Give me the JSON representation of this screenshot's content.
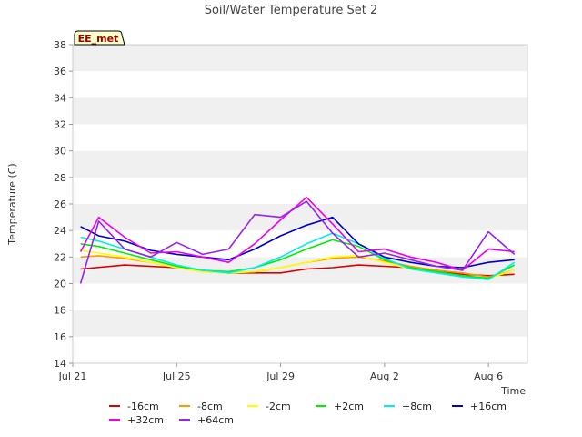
{
  "chart_data": {
    "type": "line",
    "title": "Soil/Water Temperature Set 2",
    "xlabel": "Time",
    "ylabel": "Temperature (C)",
    "station_label": "EE_met",
    "xlim": [
      0,
      17.5
    ],
    "ylim": [
      14,
      38
    ],
    "yticks": [
      14,
      16,
      18,
      20,
      22,
      24,
      26,
      28,
      30,
      32,
      34,
      36,
      38
    ],
    "xticks": [
      {
        "day": 0,
        "label": "Jul 21"
      },
      {
        "day": 4,
        "label": "Jul 25"
      },
      {
        "day": 8,
        "label": "Jul 29"
      },
      {
        "day": 12,
        "label": "Aug 2"
      },
      {
        "day": 16,
        "label": "Aug 6"
      }
    ],
    "grid": "horizontal bands",
    "legend_position": "bottom",
    "series": [
      {
        "name": "-16cm",
        "color": "#dd0000",
        "points": [
          [
            0.3,
            21.1
          ],
          [
            2,
            21.4
          ],
          [
            4,
            21.2
          ],
          [
            6,
            20.8
          ],
          [
            8,
            20.8
          ],
          [
            9,
            21.1
          ],
          [
            10,
            21.2
          ],
          [
            11,
            21.4
          ],
          [
            12,
            21.3
          ],
          [
            13,
            21.2
          ],
          [
            14,
            21.0
          ],
          [
            15,
            20.7
          ],
          [
            16,
            20.6
          ],
          [
            17,
            20.7
          ]
        ]
      },
      {
        "name": "-8cm",
        "color": "#ff9900",
        "points": [
          [
            0.3,
            22.0
          ],
          [
            1,
            22.1
          ],
          [
            2,
            21.9
          ],
          [
            3,
            21.6
          ],
          [
            4,
            21.2
          ],
          [
            5,
            20.9
          ],
          [
            6,
            20.8
          ],
          [
            7,
            20.9
          ],
          [
            8,
            21.2
          ],
          [
            9,
            21.6
          ],
          [
            10,
            21.9
          ],
          [
            11,
            22.0
          ],
          [
            12,
            21.7
          ],
          [
            13,
            21.3
          ],
          [
            14,
            21.0
          ],
          [
            15,
            20.8
          ],
          [
            16,
            20.5
          ],
          [
            17,
            21.0
          ]
        ]
      },
      {
        "name": "-2cm",
        "color": "#ffff00",
        "points": [
          [
            0.3,
            22.5
          ],
          [
            1,
            22.3
          ],
          [
            2,
            22.0
          ],
          [
            3,
            21.6
          ],
          [
            4,
            21.2
          ],
          [
            5,
            20.9
          ],
          [
            6,
            20.8
          ],
          [
            7,
            20.9
          ],
          [
            8,
            21.2
          ],
          [
            9,
            21.6
          ],
          [
            10,
            22.0
          ],
          [
            11,
            22.1
          ],
          [
            12,
            21.6
          ],
          [
            13,
            21.1
          ],
          [
            14,
            20.8
          ],
          [
            15,
            20.6
          ],
          [
            16,
            20.4
          ],
          [
            17,
            21.0
          ]
        ]
      },
      {
        "name": "+2cm",
        "color": "#00ee00",
        "points": [
          [
            0.3,
            23.0
          ],
          [
            1,
            22.8
          ],
          [
            2,
            22.3
          ],
          [
            3,
            21.8
          ],
          [
            4,
            21.3
          ],
          [
            5,
            21.0
          ],
          [
            6,
            20.9
          ],
          [
            7,
            21.2
          ],
          [
            8,
            21.8
          ],
          [
            9,
            22.6
          ],
          [
            10,
            23.3
          ],
          [
            11,
            22.8
          ],
          [
            12,
            21.8
          ],
          [
            13,
            21.2
          ],
          [
            14,
            20.9
          ],
          [
            15,
            20.6
          ],
          [
            16,
            20.4
          ],
          [
            17,
            21.4
          ]
        ]
      },
      {
        "name": "+8cm",
        "color": "#00eeee",
        "points": [
          [
            0.3,
            23.5
          ],
          [
            1,
            23.2
          ],
          [
            2,
            22.6
          ],
          [
            3,
            22.0
          ],
          [
            4,
            21.4
          ],
          [
            5,
            21.0
          ],
          [
            6,
            20.8
          ],
          [
            7,
            21.2
          ],
          [
            8,
            22.0
          ],
          [
            9,
            23.0
          ],
          [
            10,
            23.8
          ],
          [
            11,
            23.0
          ],
          [
            12,
            21.9
          ],
          [
            13,
            21.1
          ],
          [
            14,
            20.8
          ],
          [
            15,
            20.5
          ],
          [
            16,
            20.3
          ],
          [
            17,
            21.6
          ]
        ]
      },
      {
        "name": "+16cm",
        "color": "#0000cc",
        "points": [
          [
            0.3,
            24.3
          ],
          [
            1,
            23.6
          ],
          [
            2,
            23.2
          ],
          [
            3,
            22.5
          ],
          [
            4,
            22.2
          ],
          [
            5,
            22.0
          ],
          [
            6,
            21.8
          ],
          [
            7,
            22.6
          ],
          [
            8,
            23.6
          ],
          [
            9,
            24.4
          ],
          [
            10,
            25.0
          ],
          [
            11,
            23.0
          ],
          [
            12,
            22.0
          ],
          [
            13,
            21.6
          ],
          [
            14,
            21.3
          ],
          [
            15,
            21.2
          ],
          [
            16,
            21.6
          ],
          [
            17,
            21.8
          ]
        ]
      },
      {
        "name": "+32cm",
        "color": "#ee00ee",
        "points": [
          [
            0.3,
            22.4
          ],
          [
            1,
            25.0
          ],
          [
            2,
            23.5
          ],
          [
            3,
            22.3
          ],
          [
            4,
            22.4
          ],
          [
            5,
            22.0
          ],
          [
            6,
            21.6
          ],
          [
            7,
            23.0
          ],
          [
            8,
            24.8
          ],
          [
            9,
            26.5
          ],
          [
            10,
            24.5
          ],
          [
            11,
            22.4
          ],
          [
            12,
            22.6
          ],
          [
            13,
            22.0
          ],
          [
            14,
            21.6
          ],
          [
            15,
            21.0
          ],
          [
            16,
            22.6
          ],
          [
            17,
            22.4
          ]
        ]
      },
      {
        "name": "+64cm",
        "color": "#9922ee",
        "points": [
          [
            0.3,
            20.0
          ],
          [
            1,
            24.7
          ],
          [
            2,
            22.6
          ],
          [
            3,
            22.0
          ],
          [
            4,
            23.1
          ],
          [
            5,
            22.2
          ],
          [
            6,
            22.6
          ],
          [
            7,
            25.2
          ],
          [
            8,
            25.0
          ],
          [
            9,
            26.2
          ],
          [
            10,
            23.8
          ],
          [
            11,
            22.0
          ],
          [
            12,
            22.3
          ],
          [
            13,
            21.8
          ],
          [
            14,
            21.3
          ],
          [
            15,
            21.0
          ],
          [
            16,
            23.9
          ],
          [
            17,
            22.2
          ]
        ]
      }
    ]
  }
}
